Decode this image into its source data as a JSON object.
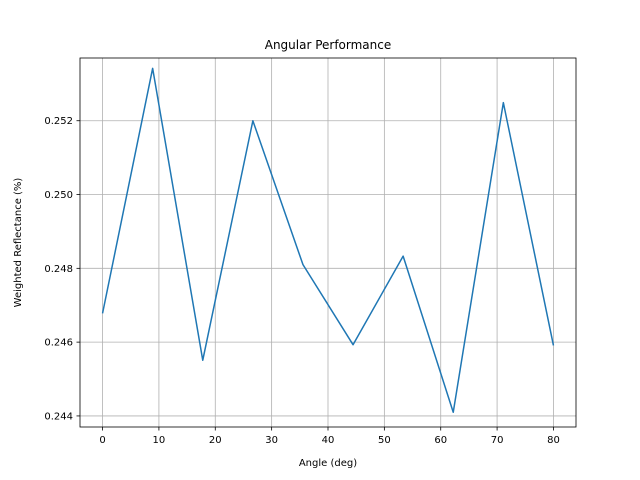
{
  "chart_data": {
    "type": "line",
    "title": "Angular Performance",
    "xlabel": "Angle (deg)",
    "ylabel": "Weighted Reflectance (%)",
    "xlim": [
      -4,
      84
    ],
    "ylim": [
      0.2437,
      0.2537
    ],
    "xticks": [
      0,
      10,
      20,
      30,
      40,
      50,
      60,
      70,
      80
    ],
    "yticks": [
      0.244,
      0.246,
      0.248,
      0.25,
      0.252
    ],
    "ytick_labels": [
      "0.244",
      "0.246",
      "0.248",
      "0.250",
      "0.252"
    ],
    "grid": true,
    "series": [
      {
        "color": "#1f77b4",
        "x": [
          0,
          8.89,
          17.78,
          26.67,
          35.56,
          44.44,
          53.33,
          62.22,
          71.11,
          80
        ],
        "y": [
          0.24678,
          0.25342,
          0.24551,
          0.252,
          0.2481,
          0.24593,
          0.24833,
          0.2441,
          0.25249,
          0.24591
        ]
      }
    ]
  }
}
